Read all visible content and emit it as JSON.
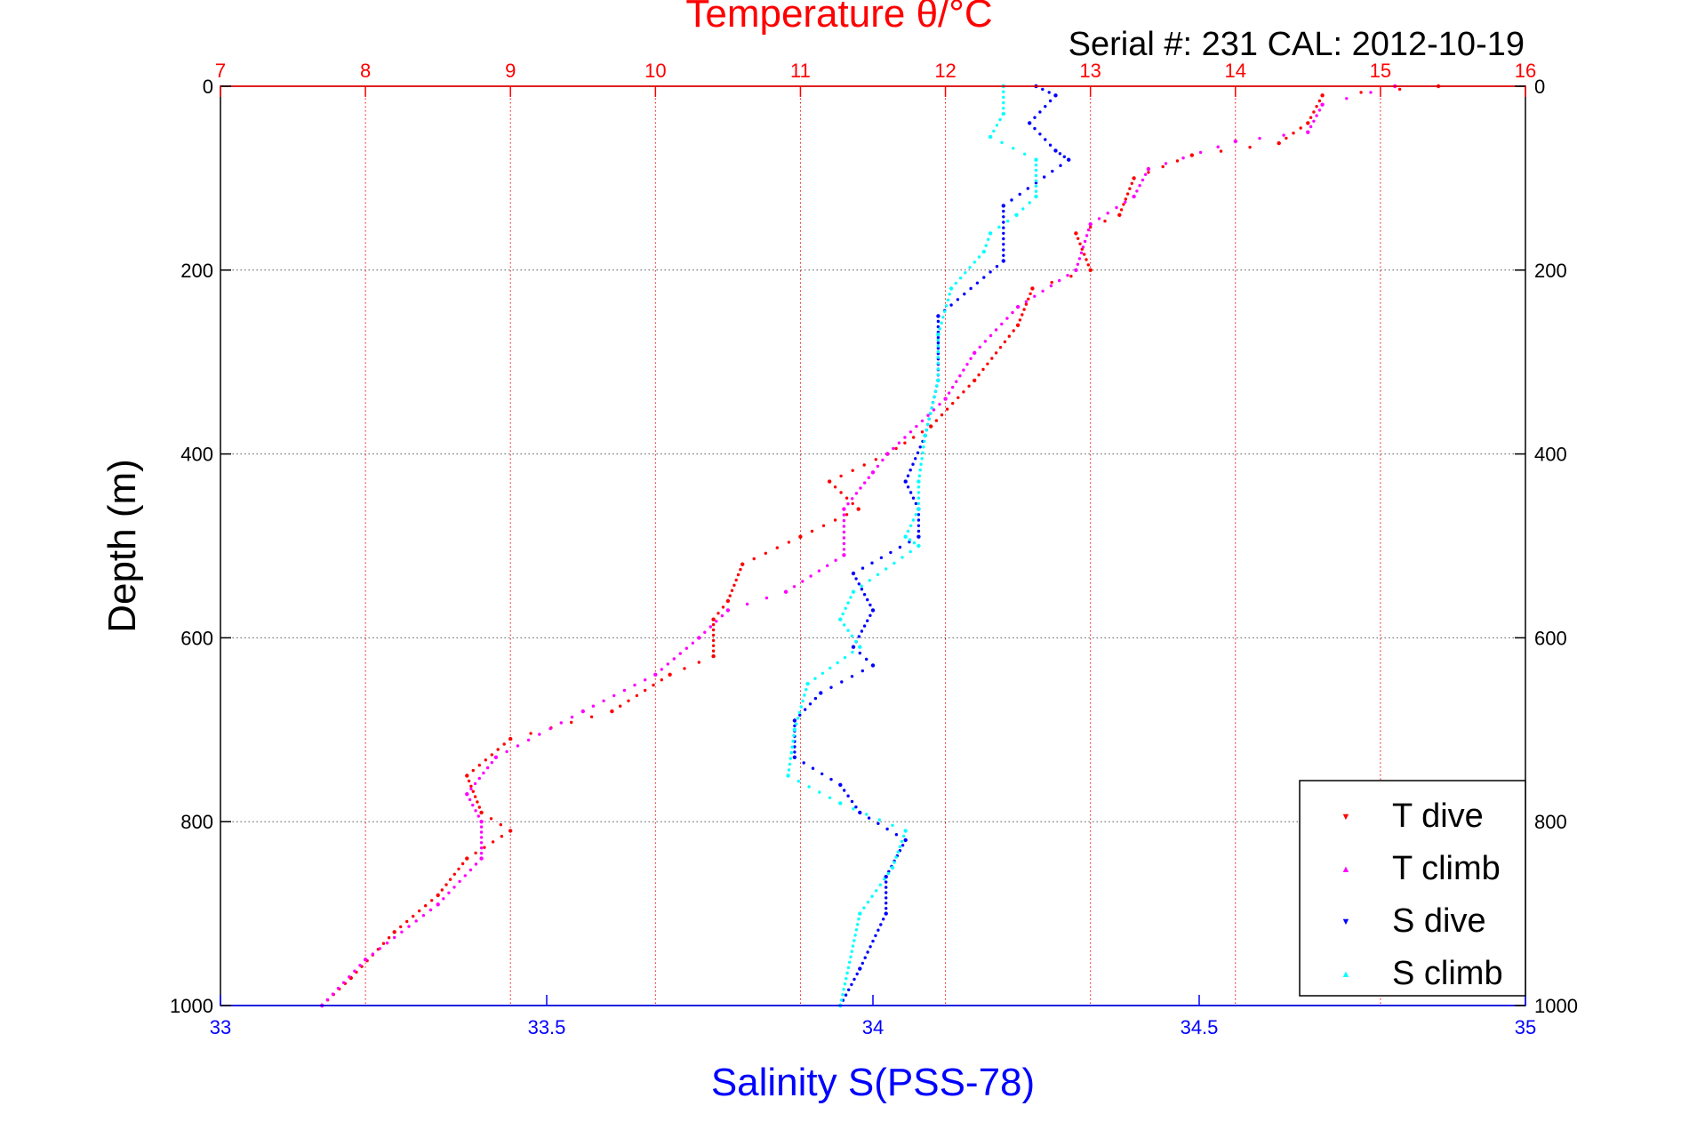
{
  "chart_data": {
    "type": "scatter",
    "title": "Temperature θ/°C",
    "subtitle": "Serial #: 231  CAL: 2012-10-19",
    "ylabel": "Depth (m)",
    "xlabel_bottom": "Salinity S(PSS-78)",
    "xlabel_top": "Temperature θ/°C",
    "ylim": [
      1000,
      0
    ],
    "y_reversed": true,
    "x_top_range": [
      7,
      16
    ],
    "x_bottom_range": [
      33,
      35
    ],
    "x_top_ticks": [
      "7",
      "8",
      "9",
      "10",
      "11",
      "12",
      "13",
      "14",
      "15",
      "16"
    ],
    "x_bottom_ticks": [
      "33",
      "33.5",
      "34",
      "34.5",
      "35"
    ],
    "y_ticks": [
      "0",
      "200",
      "400",
      "600",
      "800",
      "1000"
    ],
    "grid": true,
    "legend_position": "bottom-right",
    "colors": {
      "temperature_axis": "#ff0000",
      "salinity_axis": "#0000ff",
      "grid_temperature": "#ff0000",
      "grid_depth": "#555555"
    },
    "series": [
      {
        "name": "T dive",
        "axis": "temperature",
        "color": "#ff0000",
        "marker": "▼",
        "points": [
          [
            15.4,
            0
          ],
          [
            14.6,
            10
          ],
          [
            14.5,
            40
          ],
          [
            14.3,
            62
          ],
          [
            13.7,
            75
          ],
          [
            13.3,
            100
          ],
          [
            13.2,
            140
          ],
          [
            12.9,
            160
          ],
          [
            13.0,
            200
          ],
          [
            12.6,
            220
          ],
          [
            12.5,
            260
          ],
          [
            12.2,
            320
          ],
          [
            11.9,
            370
          ],
          [
            11.6,
            400
          ],
          [
            11.2,
            430
          ],
          [
            11.4,
            460
          ],
          [
            11.0,
            490
          ],
          [
            10.6,
            520
          ],
          [
            10.5,
            560
          ],
          [
            10.4,
            580
          ],
          [
            10.4,
            620
          ],
          [
            10.1,
            640
          ],
          [
            9.7,
            680
          ],
          [
            9.0,
            710
          ],
          [
            8.7,
            750
          ],
          [
            8.8,
            790
          ],
          [
            9.0,
            810
          ],
          [
            8.7,
            840
          ],
          [
            8.5,
            880
          ],
          [
            8.2,
            920
          ],
          [
            7.9,
            970
          ],
          [
            7.7,
            1000
          ]
        ]
      },
      {
        "name": "T climb",
        "axis": "temperature",
        "color": "#ff00ff",
        "marker": "▲",
        "points": [
          [
            15.1,
            0
          ],
          [
            14.6,
            20
          ],
          [
            14.5,
            50
          ],
          [
            14.0,
            60
          ],
          [
            13.4,
            90
          ],
          [
            13.3,
            120
          ],
          [
            13.0,
            150
          ],
          [
            12.9,
            200
          ],
          [
            12.5,
            240
          ],
          [
            12.2,
            290
          ],
          [
            12.0,
            340
          ],
          [
            11.6,
            400
          ],
          [
            11.5,
            420
          ],
          [
            11.3,
            460
          ],
          [
            11.3,
            510
          ],
          [
            10.9,
            550
          ],
          [
            10.5,
            570
          ],
          [
            10.3,
            600
          ],
          [
            10.0,
            640
          ],
          [
            9.5,
            680
          ],
          [
            8.9,
            730
          ],
          [
            8.7,
            770
          ],
          [
            8.8,
            800
          ],
          [
            8.8,
            840
          ],
          [
            8.5,
            890
          ],
          [
            8.0,
            950
          ],
          [
            7.7,
            1000
          ]
        ]
      },
      {
        "name": "S dive",
        "axis": "salinity",
        "color": "#0000ff",
        "marker": "▼",
        "points": [
          [
            34.25,
            0
          ],
          [
            34.28,
            10
          ],
          [
            34.24,
            40
          ],
          [
            34.28,
            70
          ],
          [
            34.3,
            80
          ],
          [
            34.2,
            130
          ],
          [
            34.2,
            190
          ],
          [
            34.1,
            250
          ],
          [
            34.1,
            320
          ],
          [
            34.08,
            380
          ],
          [
            34.05,
            430
          ],
          [
            34.07,
            460
          ],
          [
            34.07,
            490
          ],
          [
            33.97,
            530
          ],
          [
            34.0,
            570
          ],
          [
            33.97,
            610
          ],
          [
            34.0,
            630
          ],
          [
            33.92,
            660
          ],
          [
            33.88,
            690
          ],
          [
            33.88,
            730
          ],
          [
            33.95,
            760
          ],
          [
            33.98,
            790
          ],
          [
            34.05,
            820
          ],
          [
            34.02,
            860
          ],
          [
            34.02,
            900
          ],
          [
            33.98,
            960
          ],
          [
            33.95,
            1000
          ]
        ]
      },
      {
        "name": "S climb",
        "axis": "salinity",
        "color": "#00ffff",
        "marker": "▲",
        "points": [
          [
            34.2,
            0
          ],
          [
            34.2,
            30
          ],
          [
            34.18,
            55
          ],
          [
            34.25,
            80
          ],
          [
            34.25,
            120
          ],
          [
            34.22,
            140
          ],
          [
            34.18,
            160
          ],
          [
            34.17,
            180
          ],
          [
            34.12,
            220
          ],
          [
            34.1,
            270
          ],
          [
            34.1,
            320
          ],
          [
            34.08,
            380
          ],
          [
            34.07,
            430
          ],
          [
            34.07,
            460
          ],
          [
            34.05,
            490
          ],
          [
            34.07,
            500
          ],
          [
            33.97,
            550
          ],
          [
            33.95,
            580
          ],
          [
            33.98,
            610
          ],
          [
            33.9,
            650
          ],
          [
            33.88,
            700
          ],
          [
            33.87,
            750
          ],
          [
            33.95,
            780
          ],
          [
            34.05,
            810
          ],
          [
            34.03,
            850
          ],
          [
            33.98,
            900
          ],
          [
            33.95,
            1000
          ]
        ]
      }
    ]
  }
}
